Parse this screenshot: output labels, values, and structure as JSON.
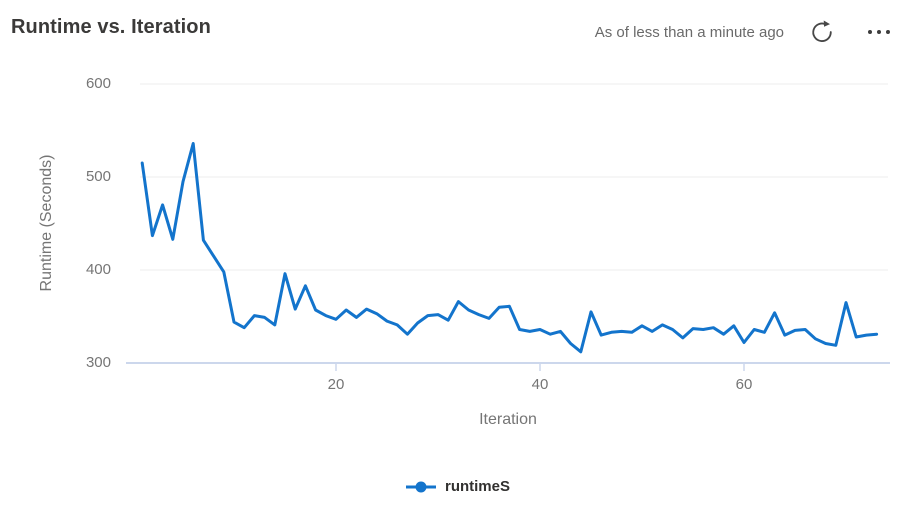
{
  "header": {
    "title": "Runtime vs. Iteration",
    "as_of_text": "As of less than a minute ago",
    "refresh_icon": "refresh-icon",
    "more_icon": "ellipsis-icon"
  },
  "colors": {
    "line": "#1374cc",
    "axis_line": "#ccd7ec",
    "gridline": "#ececec",
    "tick_text": "#757575",
    "title_text": "#3b3a39",
    "legend_text": "#323130",
    "icon_gray": "#474747"
  },
  "chart_data": {
    "type": "line",
    "title": "Runtime vs. Iteration",
    "xlabel": "Iteration",
    "ylabel": "Runtime (Seconds)",
    "xlim": [
      1,
      73
    ],
    "ylim": [
      300,
      600
    ],
    "xticks": [
      20,
      40,
      60
    ],
    "xtick_labels": [
      "20",
      "40",
      "60"
    ],
    "yticks": [
      600,
      500,
      400,
      300
    ],
    "ytick_labels": [
      "600",
      "500",
      "400",
      "300"
    ],
    "grid": "horizontal-only",
    "legend_position": "bottom-center",
    "line_color": "#1374cc",
    "series": [
      {
        "name": "runtimeS",
        "x_start": 1,
        "x_step": 1,
        "values": [
          515,
          437,
          470,
          433,
          495,
          536,
          432,
          415,
          398,
          344,
          338,
          351,
          349,
          341,
          396,
          358,
          383,
          357,
          351,
          347,
          357,
          349,
          358,
          353,
          345,
          341,
          331,
          343,
          351,
          352,
          346,
          366,
          357,
          352,
          348,
          360,
          361,
          336,
          334,
          336,
          331,
          334,
          321,
          312,
          355,
          330,
          333,
          334,
          333,
          340,
          334,
          341,
          336,
          327,
          337,
          336,
          338,
          331,
          340,
          322,
          336,
          333,
          354,
          330,
          335,
          336,
          326,
          321,
          319,
          365,
          328,
          330,
          331
        ]
      }
    ],
    "legend": {
      "entries": [
        "runtimeS"
      ]
    }
  }
}
